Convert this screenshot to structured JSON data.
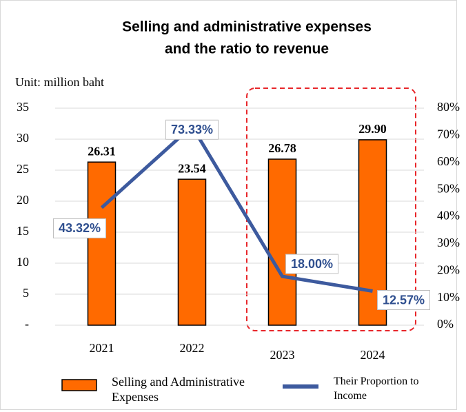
{
  "chart_data": {
    "type": "bar",
    "title": [
      "Selling and administrative expenses",
      "and the ratio to revenue"
    ],
    "y_axis_label": "Unit: million baht",
    "categories": [
      "2021",
      "2022",
      "2023",
      "2024"
    ],
    "series": [
      {
        "name": "Selling and Administrative Expenses",
        "type": "bar",
        "color": "#ff6a00",
        "values": [
          26.31,
          23.54,
          26.78,
          29.9
        ],
        "value_labels": [
          "26.31",
          "23.54",
          "26.78",
          "29.90"
        ]
      },
      {
        "name": "Their Proportion to Income",
        "type": "line",
        "axis": "y2",
        "color": "#3d5a9e",
        "values": [
          43.32,
          73.33,
          18.0,
          12.57
        ],
        "value_labels": [
          "43.32%",
          "73.33%",
          "18.00%",
          "12.57%"
        ]
      }
    ],
    "ylim": [
      0,
      35
    ],
    "yticks": [
      {
        "value": 0,
        "label": "-"
      },
      5,
      10,
      15,
      20,
      25,
      30,
      35
    ],
    "y2lim": [
      0,
      80
    ],
    "y2ticks": [
      {
        "value": 0,
        "label": "0%"
      },
      {
        "value": 10,
        "label": "10%"
      },
      {
        "value": 20,
        "label": "20%"
      },
      {
        "value": 30,
        "label": "30%"
      },
      {
        "value": 40,
        "label": "40%"
      },
      {
        "value": 50,
        "label": "50%"
      },
      {
        "value": 60,
        "label": "60%"
      },
      {
        "value": 70,
        "label": "70%"
      },
      {
        "value": 80,
        "label": "80%"
      }
    ],
    "grid": true
  }
}
